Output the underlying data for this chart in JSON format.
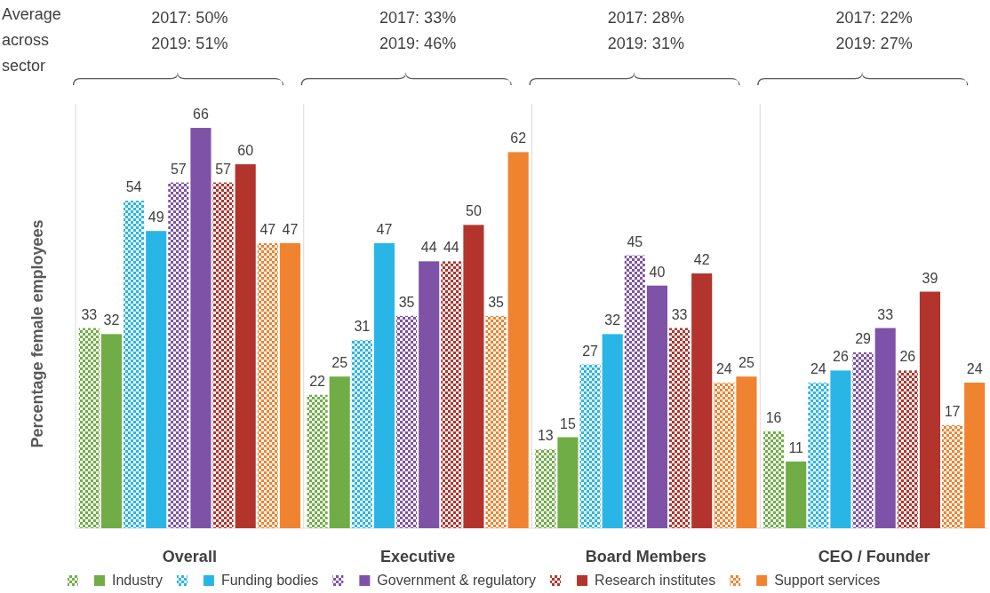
{
  "chart_data": {
    "type": "bar",
    "ylabel": "Percentage female employees",
    "categories": [
      "Overall",
      "Executive",
      "Board Members",
      "CEO / Founder"
    ],
    "series": [
      {
        "color": "#70ad47",
        "values": [
          33,
          22,
          13,
          16
        ]
      },
      {
        "name": "Industry",
        "color": "#70ad47",
        "values": [
          32,
          25,
          15,
          11
        ]
      },
      {
        "color": "#29b6e6",
        "values": [
          54,
          31,
          27,
          24
        ]
      },
      {
        "name": "Funding bodies",
        "color": "#29b6e6",
        "values": [
          49,
          47,
          32,
          26
        ]
      },
      {
        "color": "#7e52a6",
        "values": [
          57,
          35,
          45,
          29
        ]
      },
      {
        "name": "Government & regulatory",
        "color": "#7e52a6",
        "values": [
          66,
          44,
          40,
          33
        ]
      },
      {
        "color": "#b3342c",
        "values": [
          57,
          44,
          33,
          26
        ]
      },
      {
        "name": "Research institutes",
        "color": "#b3342c",
        "values": [
          60,
          50,
          42,
          39
        ]
      },
      {
        "color": "#f0832f",
        "values": [
          47,
          35,
          24,
          17
        ]
      },
      {
        "name": "Support services",
        "color": "#f0832f",
        "values": [
          47,
          62,
          25,
          24
        ]
      }
    ],
    "data_labels": true,
    "legend": "bottom",
    "annotations": [
      "Average across sector",
      "2017: 50%\n2019: 51%",
      "2017: 33%\n2019: 46%",
      "2017: 28%\n2019: 31%",
      "2017: 22%\n2019: 27%"
    ]
  }
}
